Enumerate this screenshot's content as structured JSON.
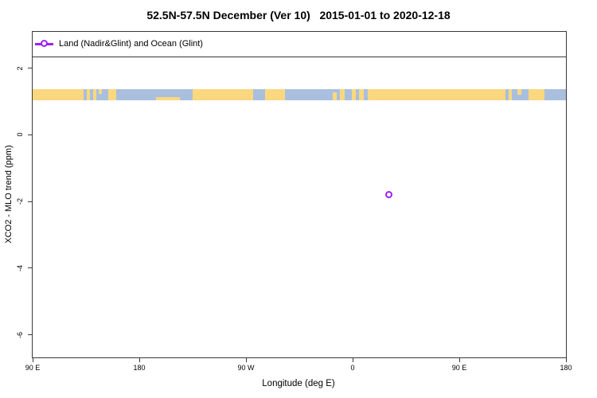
{
  "title": "52.5N-57.5N December (Ver 10)   2015-01-01 to 2020-12-18",
  "legend": {
    "marker_icon": "purple-line-with-open-circle",
    "label": "Land (Nadir&Glint) and Ocean (Glint)"
  },
  "colors": {
    "background": "#ffffff",
    "axis": "#3a3a3a",
    "series": "#A020F0",
    "land": "#FBD87F",
    "ocean": "#A9BFDD"
  },
  "chart_data": {
    "type": "scatter",
    "title": "52.5N-57.5N December (Ver 10)   2015-01-01 to 2020-12-18",
    "xlabel": "Longitude (deg E)",
    "ylabel": "XCO2 - MLO trend (ppm)",
    "grid": false,
    "legend_position": "top-left-band",
    "x_axis": {
      "axis_span_deg_e": [
        90,
        540
      ],
      "ticks": [
        {
          "axis_lon": 90,
          "label": "90 E"
        },
        {
          "axis_lon": 180,
          "label": "180"
        },
        {
          "axis_lon": 270,
          "label": "90 W"
        },
        {
          "axis_lon": 360,
          "label": "0"
        },
        {
          "axis_lon": 450,
          "label": "90 E"
        },
        {
          "axis_lon": 540,
          "label": "180"
        }
      ]
    },
    "y_axis": {
      "ylim": [
        -6.68,
        3.09
      ],
      "ticks": [
        {
          "v": 2,
          "label": "2"
        },
        {
          "v": 0,
          "label": "0"
        },
        {
          "v": -2,
          "label": "-2"
        },
        {
          "v": -4,
          "label": "-4"
        },
        {
          "v": -6,
          "label": "-6"
        }
      ]
    },
    "series": [
      {
        "name": "Land (Nadir&Glint) and Ocean (Glint)",
        "color": "#A020F0",
        "marker": "open-circle",
        "points": [
          {
            "lon_deg_e": 30.5,
            "value_ppm": -1.8
          }
        ]
      }
    ],
    "map_band": {
      "description": "world coastline strip for latitude band 52.5N-57.5N",
      "lat_range": "52.5N-57.5N",
      "value_top": 1.36,
      "value_bottom": 1.04,
      "land_color": "#FBD87F",
      "ocean_color": "#A9BFDD",
      "base_segments": [
        [
          90,
          133,
          "land"
        ],
        [
          133,
          135.5,
          "ocean"
        ],
        [
          135.5,
          138.5,
          "land"
        ],
        [
          138.5,
          141,
          "ocean"
        ],
        [
          141,
          143.5,
          "land"
        ],
        [
          143.5,
          153.5,
          "ocean"
        ],
        [
          153.5,
          160.5,
          "land"
        ],
        [
          160.5,
          225,
          "ocean"
        ],
        [
          225,
          276,
          "land"
        ],
        [
          276,
          286,
          "ocean"
        ],
        [
          286,
          303,
          "land"
        ],
        [
          303,
          349.5,
          "ocean"
        ],
        [
          349.5,
          353.5,
          "land"
        ],
        [
          353.5,
          359,
          "ocean"
        ],
        [
          359,
          362.5,
          "land"
        ],
        [
          362.5,
          365.5,
          "ocean"
        ],
        [
          365.5,
          369.5,
          "land"
        ],
        [
          369.5,
          372.5,
          "ocean"
        ],
        [
          372.5,
          489,
          "land"
        ],
        [
          489,
          491.5,
          "ocean"
        ],
        [
          491.5,
          494.5,
          "land"
        ],
        [
          494.5,
          508.5,
          "ocean"
        ],
        [
          508.5,
          522,
          "land"
        ],
        [
          522,
          540,
          "ocean"
        ]
      ],
      "patches": [
        {
          "from": 194,
          "to": 214,
          "type": "land",
          "top": 0.72,
          "h": 0.28
        },
        {
          "from": 343.5,
          "to": 346.8,
          "type": "land",
          "top": 0.3,
          "h": 0.7
        },
        {
          "from": 499,
          "to": 502.5,
          "type": "land",
          "top": 0,
          "h": 0.5
        },
        {
          "from": 146,
          "to": 148.5,
          "type": "land",
          "top": 0,
          "h": 0.45
        }
      ]
    }
  }
}
